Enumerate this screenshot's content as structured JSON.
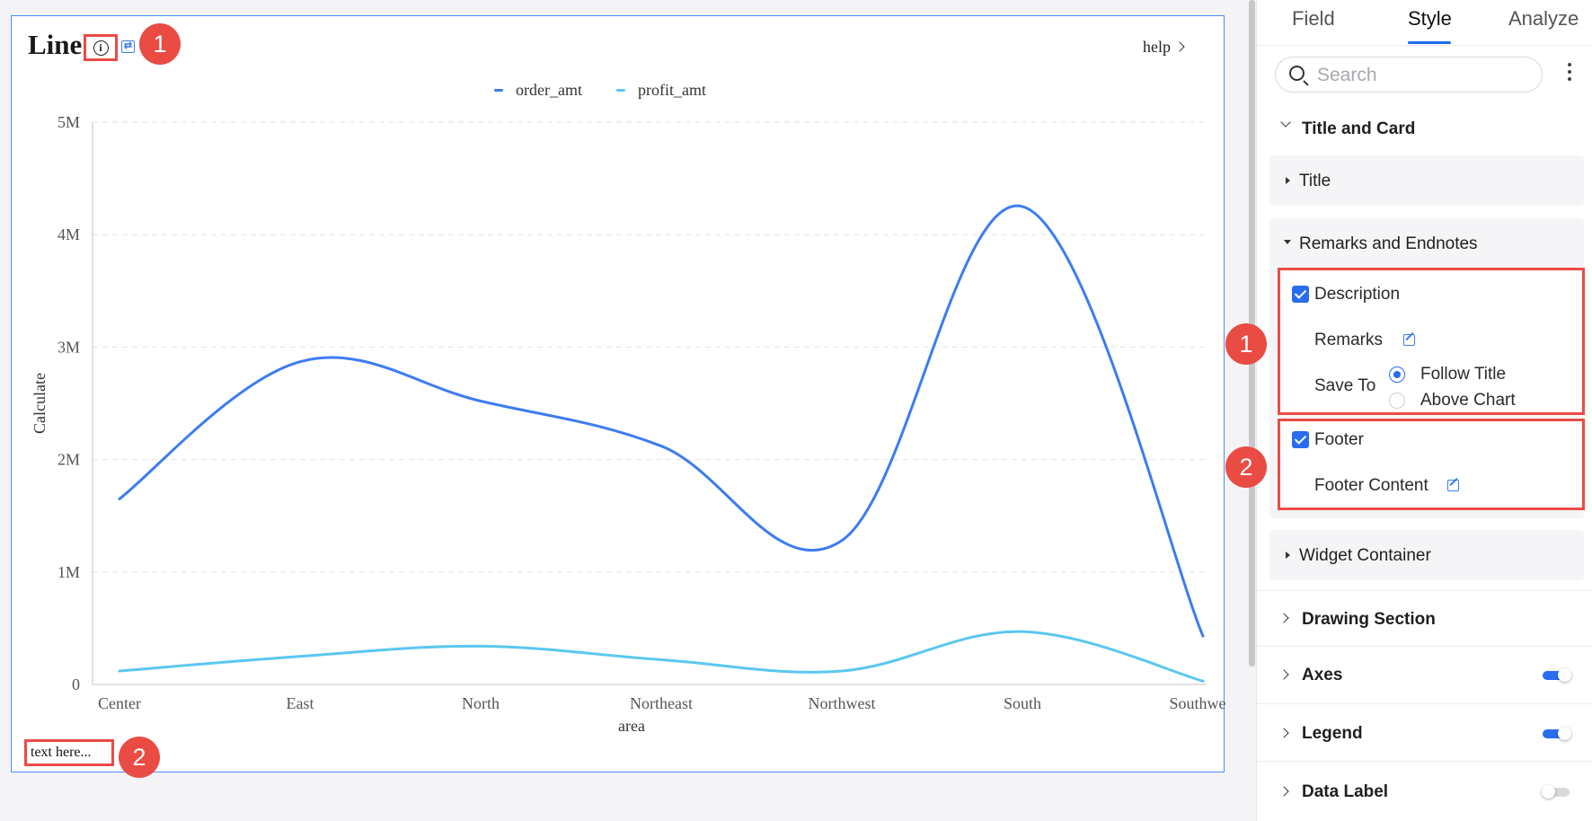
{
  "chart_card": {
    "title": "Line",
    "help_label": "help",
    "footer_text": "text here...",
    "badge_description": "1",
    "badge_footer": "2"
  },
  "chart_data": {
    "type": "line",
    "title": "Line",
    "xlabel": "area",
    "ylabel": "Calculate",
    "categories": [
      "Center",
      "East",
      "North",
      "Northeast",
      "Northwest",
      "South",
      "Southwest"
    ],
    "y_ticks": [
      "0",
      "1M",
      "2M",
      "3M",
      "4M",
      "5M"
    ],
    "ylim": [
      0,
      5000000
    ],
    "grid": true,
    "legend_position": "top-center",
    "series": [
      {
        "name": "order_amt",
        "color": "#3d7cf0",
        "values": [
          1650000,
          2870000,
          2520000,
          2120000,
          1280000,
          4250000,
          430000
        ]
      },
      {
        "name": "profit_amt",
        "color": "#5ac8ef",
        "values": [
          120000,
          250000,
          340000,
          220000,
          120000,
          470000,
          30000
        ]
      }
    ]
  },
  "panel": {
    "tabs": [
      "Field",
      "Style",
      "Analyze"
    ],
    "active_tab": "Style",
    "search_placeholder": "Search",
    "sections": {
      "title_and_card": "Title and Card",
      "title": "Title",
      "remarks_and_endnotes": "Remarks and Endnotes",
      "description": "Description",
      "remarks": "Remarks",
      "save_to": "Save To",
      "follow_title": "Follow Title",
      "above_chart": "Above Chart",
      "footer": "Footer",
      "footer_content": "Footer Content",
      "widget_container": "Widget Container",
      "drawing_section": "Drawing Section",
      "axes": "Axes",
      "legend": "Legend",
      "data_label": "Data Label"
    },
    "badge_description": "1",
    "badge_footer": "2",
    "accent_color": "#2a6cf0",
    "highlight_color": "#ec4b45"
  }
}
